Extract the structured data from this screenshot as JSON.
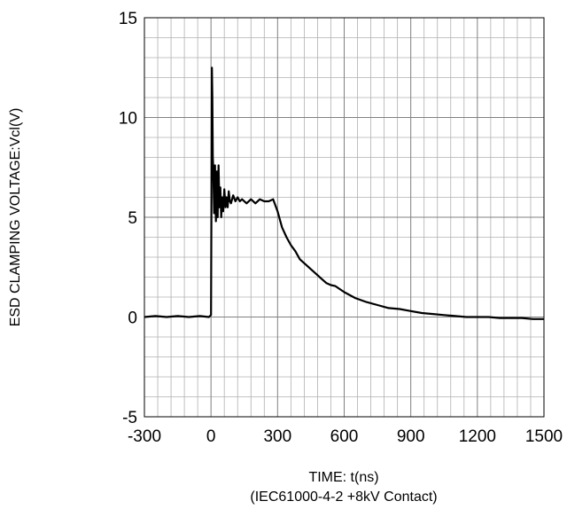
{
  "chart_data": {
    "type": "line",
    "xlabel": "TIME: t(ns)",
    "xlabel_sub": "(IEC61000-4-2 +8kV Contact)",
    "ylabel": "ESD CLAMPING VOLTAGE:Vcl(V)",
    "xlim": [
      -300,
      1500
    ],
    "ylim": [
      -5,
      15
    ],
    "x_ticks": [
      "-300",
      "0",
      "300",
      "600",
      "900",
      "1200",
      "1500"
    ],
    "y_ticks": [
      "15",
      "10",
      "5",
      "0",
      "-5"
    ],
    "x_tick_values": [
      -300,
      0,
      300,
      600,
      900,
      1200,
      1500
    ],
    "y_tick_values": [
      15,
      10,
      5,
      0,
      -5
    ],
    "minor_grid": true,
    "line_color": "#000000",
    "series": [
      {
        "x": [
          -300,
          -250,
          -200,
          -150,
          -100,
          -50,
          -10,
          0,
          2,
          4,
          6,
          8,
          10,
          14,
          18,
          22,
          26,
          30,
          34,
          38,
          42,
          46,
          50,
          55,
          60,
          65,
          70,
          75,
          80,
          85,
          90,
          100,
          110,
          120,
          130,
          140,
          160,
          180,
          200,
          220,
          240,
          260,
          280,
          300,
          320,
          340,
          360,
          380,
          400,
          420,
          440,
          460,
          480,
          500,
          520,
          540,
          560,
          580,
          600,
          650,
          700,
          750,
          800,
          850,
          900,
          950,
          1000,
          1050,
          1100,
          1150,
          1200,
          1250,
          1300,
          1350,
          1400,
          1450,
          1500
        ],
        "y": [
          0.0,
          0.05,
          0.0,
          0.05,
          0.0,
          0.05,
          0.0,
          0.1,
          6.0,
          12.5,
          11.0,
          8.0,
          7.5,
          5.2,
          7.6,
          4.8,
          7.3,
          5.0,
          7.6,
          5.5,
          6.5,
          5.0,
          6.0,
          5.3,
          6.4,
          5.5,
          6.0,
          5.5,
          6.3,
          5.8,
          5.7,
          6.1,
          5.8,
          6.0,
          5.8,
          5.9,
          5.7,
          5.9,
          5.7,
          5.9,
          5.8,
          5.8,
          5.9,
          5.3,
          4.5,
          4.0,
          3.6,
          3.3,
          2.9,
          2.7,
          2.5,
          2.3,
          2.1,
          1.9,
          1.7,
          1.6,
          1.55,
          1.4,
          1.25,
          0.95,
          0.75,
          0.6,
          0.45,
          0.4,
          0.3,
          0.2,
          0.15,
          0.1,
          0.05,
          0.0,
          0.0,
          0.0,
          -0.05,
          -0.05,
          -0.05,
          -0.1,
          -0.1
        ]
      }
    ]
  }
}
